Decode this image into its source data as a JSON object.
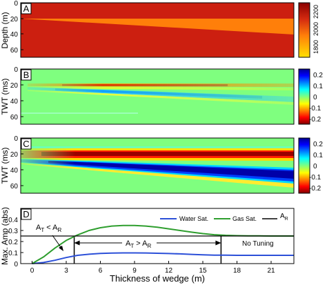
{
  "chart_data": [
    {
      "type": "heatmap",
      "panel": "A",
      "ylabel": "Depth (m)",
      "y_ticks": [
        "0",
        "20",
        "40",
        "60"
      ],
      "ylim": [
        0,
        70
      ],
      "colorbar_ticks": [
        "2200",
        "2000",
        "1800"
      ],
      "colorbar_range": [
        1700,
        2300
      ],
      "colors": {
        "background": "#cc1f10",
        "wedge": "#ff7f0a",
        "low": "#ffe000",
        "high": "#8b0000"
      },
      "wedge": {
        "top_depth": 20,
        "base_depth_start": 20,
        "base_depth_end": 41
      }
    },
    {
      "type": "heatmap",
      "panel": "B",
      "ylabel": "TWT (ms)",
      "y_ticks": [
        "0",
        "20",
        "40",
        "60"
      ],
      "ylim": [
        0,
        70
      ],
      "colorbar_ticks": [
        "0.2",
        "0.1",
        "0",
        "-0.1",
        "-0.2"
      ],
      "colorbar_range": [
        -0.25,
        0.25
      ]
    },
    {
      "type": "heatmap",
      "panel": "C",
      "ylabel": "TWT (ms)",
      "y_ticks": [
        "0",
        "20",
        "40",
        "60"
      ],
      "ylim": [
        0,
        70
      ],
      "colorbar_ticks": [
        "0.2",
        "0.1",
        "0",
        "-0.1",
        "-0.2"
      ],
      "colorbar_range": [
        -0.25,
        0.25
      ]
    },
    {
      "type": "line",
      "panel": "D",
      "xlabel": "Thickness of wedge (m)",
      "ylabel": "Max. Amp (abs)",
      "xlim": [
        -1,
        23
      ],
      "ylim": [
        0,
        0.5
      ],
      "x_ticks": [
        0,
        3,
        6,
        9,
        12,
        15,
        18,
        21
      ],
      "y_ticks": [
        0,
        0.1,
        0.2,
        0.3,
        0.4
      ],
      "y_tick_labels": [
        "0",
        "0.1",
        "0.2",
        "0.3",
        "0.4"
      ],
      "series": [
        {
          "name": "Water Sat.",
          "color": "#2b4fd8",
          "x": [
            0,
            1,
            2,
            3,
            4,
            5,
            6,
            7,
            8,
            9,
            10,
            11,
            12,
            13,
            14,
            15,
            16,
            17,
            18,
            19,
            20,
            21,
            22,
            23
          ],
          "y": [
            0.0,
            0.01,
            0.03,
            0.055,
            0.075,
            0.085,
            0.092,
            0.095,
            0.097,
            0.097,
            0.096,
            0.094,
            0.091,
            0.088,
            0.084,
            0.08,
            0.077,
            0.076,
            0.075,
            0.075,
            0.075,
            0.075,
            0.075,
            0.075
          ]
        },
        {
          "name": "Gas Sat.",
          "color": "#2e9e2e",
          "x": [
            0,
            1,
            2,
            3,
            4,
            5,
            6,
            7,
            8,
            9,
            10,
            11,
            12,
            13,
            14,
            15,
            16,
            17,
            18,
            19,
            20,
            21,
            22,
            23
          ],
          "y": [
            0.0,
            0.06,
            0.14,
            0.21,
            0.26,
            0.3,
            0.325,
            0.34,
            0.345,
            0.345,
            0.34,
            0.33,
            0.315,
            0.3,
            0.285,
            0.272,
            0.262,
            0.256,
            0.253,
            0.252,
            0.251,
            0.25,
            0.25,
            0.25
          ]
        },
        {
          "name": "A_R",
          "color": "#000000",
          "x": [
            -1,
            23
          ],
          "y": [
            0.25,
            0.25
          ]
        }
      ],
      "legend_position": "top-right",
      "tuning_lines_x": [
        3.7,
        16.6
      ],
      "annotations": {
        "at_lt_ar": {
          "a": "A",
          "sub1": "T",
          "op": " < A",
          "sub2": "R"
        },
        "at_gt_ar": {
          "a": "A",
          "sub1": "T",
          "op": " > A",
          "sub2": "R"
        },
        "no_tuning": "No Tuning"
      }
    }
  ],
  "legend": {
    "water_label": "Water Sat.",
    "gas_label": "Gas Sat.",
    "ar_a": "A",
    "ar_sub": "R"
  }
}
